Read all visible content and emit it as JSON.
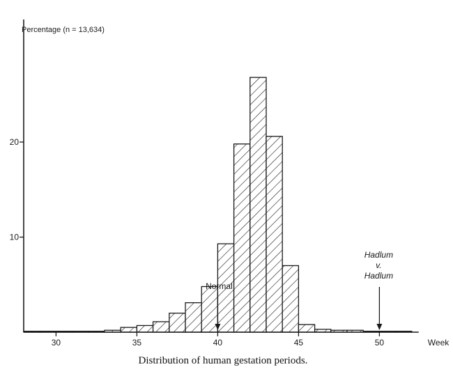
{
  "chart_data": {
    "type": "bar",
    "title": "Distribution of human gestation periods.",
    "ylabel": "Percentage (n = 13,634)",
    "xlabel": "Week",
    "xlim": [
      28,
      52
    ],
    "ylim": [
      0,
      27
    ],
    "x_ticks": [
      30,
      35,
      40,
      45,
      50
    ],
    "y_ticks": [
      10,
      20
    ],
    "bins": [
      {
        "week": 28,
        "value": 0.1
      },
      {
        "week": 29,
        "value": 0.1
      },
      {
        "week": 30,
        "value": 0.1
      },
      {
        "week": 31,
        "value": 0.1
      },
      {
        "week": 32,
        "value": 0.1
      },
      {
        "week": 33,
        "value": 0.2
      },
      {
        "week": 34,
        "value": 0.5
      },
      {
        "week": 35,
        "value": 0.7
      },
      {
        "week": 36,
        "value": 1.1
      },
      {
        "week": 37,
        "value": 2.0
      },
      {
        "week": 38,
        "value": 3.1
      },
      {
        "week": 39,
        "value": 4.8
      },
      {
        "week": 40,
        "value": 9.3
      },
      {
        "week": 41,
        "value": 19.8
      },
      {
        "week": 42,
        "value": 26.8
      },
      {
        "week": 43,
        "value": 20.6
      },
      {
        "week": 44,
        "value": 7.0
      },
      {
        "week": 45,
        "value": 0.8
      },
      {
        "week": 46,
        "value": 0.3
      },
      {
        "week": 47,
        "value": 0.2
      },
      {
        "week": 48,
        "value": 0.2
      },
      {
        "week": 49,
        "value": 0.1
      },
      {
        "week": 50,
        "value": 0.1
      },
      {
        "week": 51,
        "value": 0.1
      }
    ],
    "annotations": [
      {
        "label": "Normal",
        "x": 40
      },
      {
        "label": "Hadlum\nv.\nHadlum",
        "x": 50
      }
    ]
  }
}
